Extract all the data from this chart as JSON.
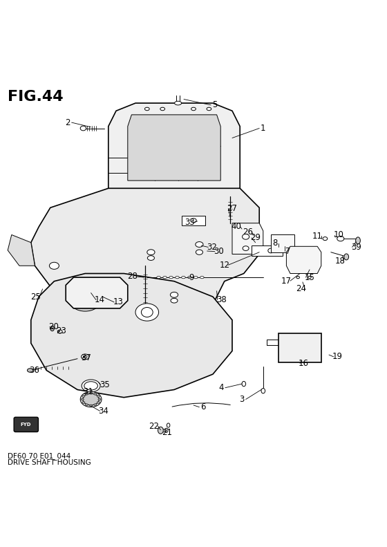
{
  "title": "FIG.44",
  "subtitle1": "DF60 70 E01_044",
  "subtitle2": "DRIVE SHAFT HOUSING",
  "bg_color": "#ffffff",
  "line_color": "#000000",
  "title_fontsize": 16,
  "label_fontsize": 8.5,
  "fig_width": 5.6,
  "fig_height": 7.91,
  "dpi": 100
}
